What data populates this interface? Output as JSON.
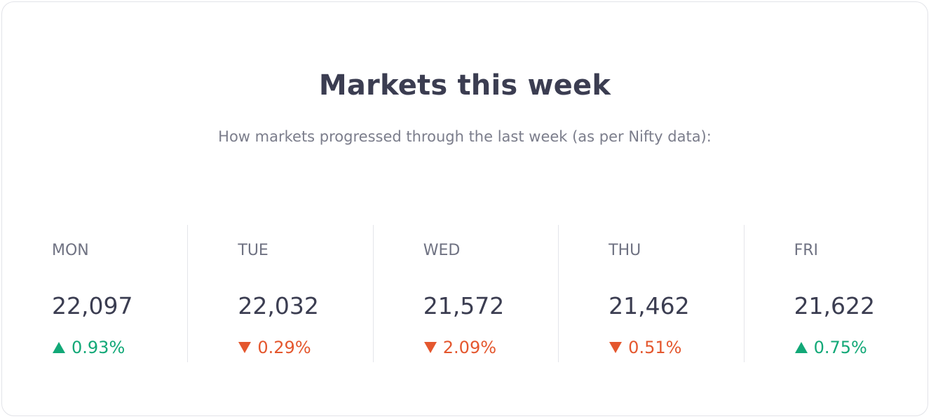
{
  "header": {
    "title": "Markets this week",
    "subtitle": "How markets progressed through the last week (as per Nifty data):"
  },
  "days": [
    {
      "day": "MON",
      "value": "22,097",
      "change": "0.93%",
      "direction": "up"
    },
    {
      "day": "TUE",
      "value": "22,032",
      "change": "0.29%",
      "direction": "down"
    },
    {
      "day": "WED",
      "value": "21,572",
      "change": "2.09%",
      "direction": "down"
    },
    {
      "day": "THU",
      "value": "21,462",
      "change": "0.51%",
      "direction": "down"
    },
    {
      "day": "FRI",
      "value": "21,622",
      "change": "0.75%",
      "direction": "up"
    }
  ]
}
